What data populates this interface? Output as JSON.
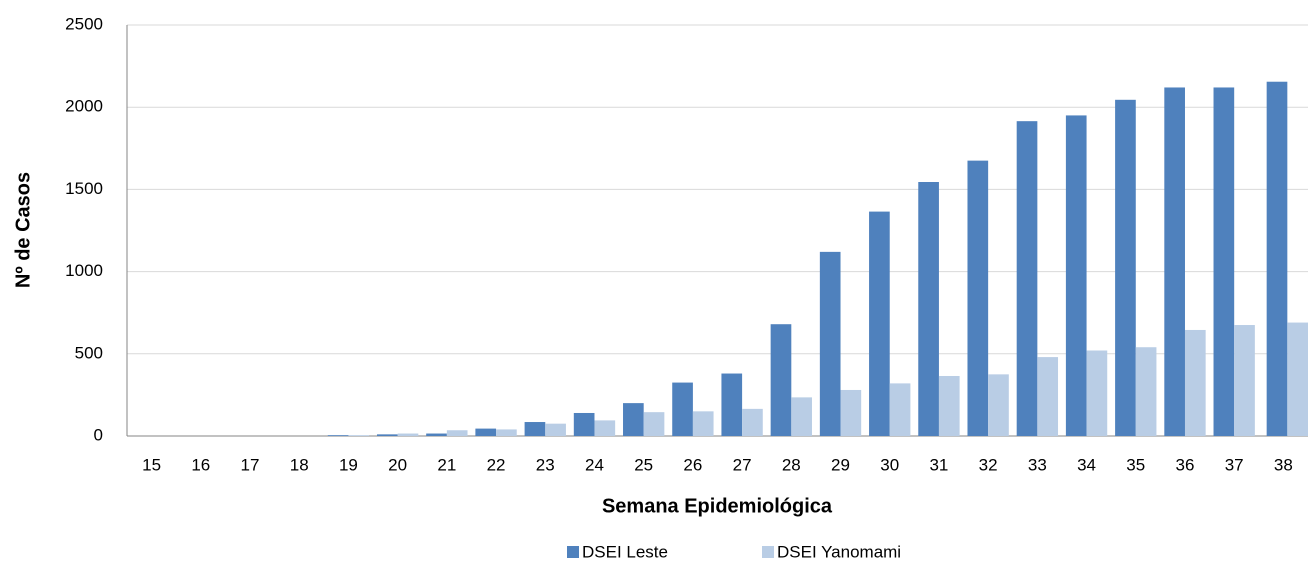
{
  "chart_data": {
    "type": "bar",
    "y_label": "Nº de Casos",
    "x_label": "Semana Epidemiológica",
    "categories": [
      "15",
      "16",
      "17",
      "18",
      "19",
      "20",
      "21",
      "22",
      "23",
      "24",
      "25",
      "26",
      "27",
      "28",
      "29",
      "30",
      "31",
      "32",
      "33",
      "34",
      "35",
      "36",
      "37",
      "38"
    ],
    "series": [
      {
        "name": "DSEI Leste",
        "color": "#4f81bd",
        "values": [
          0,
          0,
          0,
          0,
          5,
          10,
          15,
          45,
          85,
          140,
          200,
          325,
          380,
          680,
          1120,
          1365,
          1545,
          1675,
          1915,
          1950,
          2045,
          2120,
          2120,
          2155
        ]
      },
      {
        "name": "DSEI Yanomami",
        "color": "#b9cde5",
        "values": [
          0,
          0,
          0,
          0,
          5,
          15,
          35,
          40,
          75,
          95,
          145,
          150,
          165,
          235,
          280,
          320,
          365,
          375,
          480,
          520,
          540,
          645,
          675,
          690
        ]
      }
    ],
    "ylim": [
      0,
      2500
    ],
    "yticks": [
      0,
      500,
      1000,
      1500,
      2000,
      2500
    ],
    "grid": true,
    "legend": "bottom"
  }
}
